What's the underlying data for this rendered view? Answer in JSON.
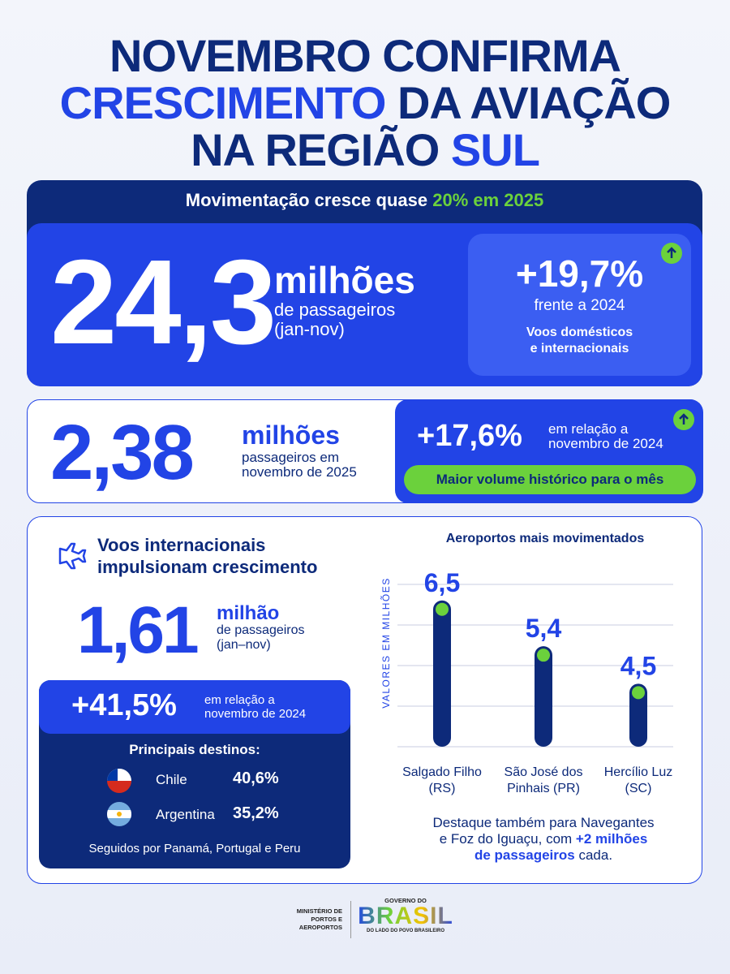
{
  "title": {
    "line1": "NOVEMBRO CONFIRMA",
    "line2a": "CRESCIMENTO",
    "line2b": " DA AVIAÇÃO",
    "line3a": "NA REGIÃO ",
    "line3b": "SUL"
  },
  "banner": {
    "text": "Movimentação cresce quase ",
    "highlight": "20% em 2025"
  },
  "stat1": {
    "value": "24,3",
    "unit": "milhões",
    "desc": [
      "de passageiros",
      "(jan-nov)"
    ],
    "change": "+19,7%",
    "compare": "frente a 2024",
    "note": [
      "Voos domésticos",
      "e internacionais"
    ]
  },
  "stat2": {
    "value": "2,38",
    "unit": "milhões",
    "desc": [
      "passageiros em",
      "novembro de 2025"
    ],
    "change": "+17,6%",
    "compare": [
      "em relação a",
      "novembro de 2024"
    ],
    "badge": "Maior volume histórico para o mês"
  },
  "intl": {
    "heading": [
      "Voos internacionais",
      "impulsionam crescimento"
    ],
    "value": "1,61",
    "unit": "milhão",
    "desc": [
      "de passageiros",
      "(jan–nov)"
    ],
    "change": "+41,5%",
    "compare": [
      "em relação a",
      "novembro de 2024"
    ],
    "destinations_title": "Principais destinos:",
    "destinations": [
      {
        "name": "Chile",
        "share": "40,6%"
      },
      {
        "name": "Argentina",
        "share": "35,2%"
      }
    ],
    "footnote": "Seguidos por Panamá, Portugal e Peru"
  },
  "chart_data": {
    "type": "bar",
    "title": "Aeroportos mais movimentados",
    "y_label": "VALORES EM MILHÕES",
    "categories": [
      [
        "Salgado Filho",
        "(RS)"
      ],
      [
        "São José dos",
        "Pinhais (PR)"
      ],
      [
        "Hercílio Luz",
        "(SC)"
      ]
    ],
    "values": [
      6.5,
      5.4,
      4.5
    ],
    "value_labels": [
      "6,5",
      "5,4",
      "4,5"
    ],
    "ylim": [
      3.2,
      7.1
    ],
    "color": "#0d2a7a",
    "dot_color": "#6bd13c"
  },
  "highlight_note": {
    "line1": "Destaque também para Navegantes",
    "line2": "e Foz do Iguaçu, com ",
    "strong1": "+2 milhões",
    "strong2": "de passageiros",
    "tail": " cada."
  },
  "footer": {
    "ministry": [
      "MINISTÉRIO DE",
      "PORTOS E",
      "AEROPORTOS"
    ],
    "gov_top": "GOVERNO DO",
    "gov_name": "BRASIL",
    "gov_tagline": "DO LADO DO POVO BRASILEIRO"
  }
}
